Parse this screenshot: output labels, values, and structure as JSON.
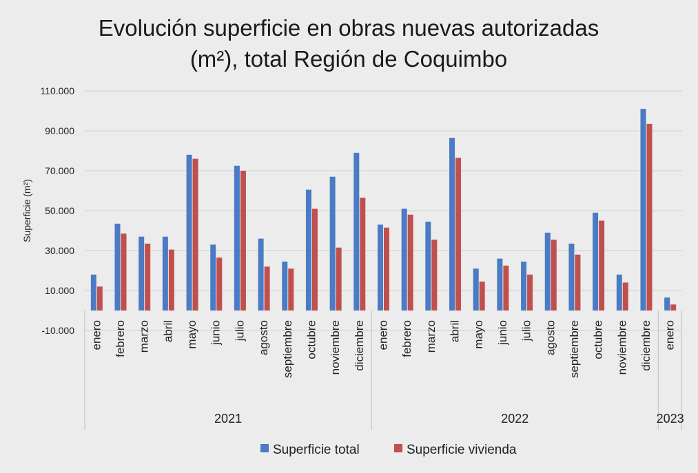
{
  "chart_data": {
    "type": "bar",
    "title_lines": [
      "Evolución superficie en obras nuevas autorizadas",
      "(m²), total Región de Coquimbo"
    ],
    "ylabel": "Superficie  (m²)",
    "xlabel": "",
    "ylim": [
      -10000,
      110000
    ],
    "yticks": [
      110000,
      90000,
      70000,
      50000,
      30000,
      10000,
      -10000
    ],
    "ytick_labels": [
      "110.000",
      "90.000",
      "70.000",
      "50.000",
      "30.000",
      "10.000",
      "-10.000"
    ],
    "grid": true,
    "categories": [
      "enero",
      "febrero",
      "marzo",
      "abril",
      "mayo",
      "junio",
      "julio",
      "agosto",
      "septiembre",
      "octubre",
      "noviembre",
      "diciembre",
      "enero",
      "febrero",
      "marzo",
      "abril",
      "mayo",
      "junio",
      "julio",
      "agosto",
      "septiembre",
      "octubre",
      "noviembre",
      "diciembre",
      "enero"
    ],
    "year_groups": [
      {
        "label": "2021",
        "start": 0,
        "end": 11
      },
      {
        "label": "2022",
        "start": 12,
        "end": 23
      },
      {
        "label": "2023",
        "start": 24,
        "end": 24
      }
    ],
    "series": [
      {
        "name": "Superficie total",
        "color": "#4a7bc4",
        "values": [
          18000,
          43500,
          37000,
          37000,
          78000,
          33000,
          72500,
          36000,
          24500,
          60500,
          67000,
          79000,
          43000,
          51000,
          44500,
          86500,
          21000,
          26000,
          24500,
          39000,
          33500,
          49000,
          18000,
          101000,
          6500
        ]
      },
      {
        "name": "Superficie vivienda",
        "color": "#c0504d",
        "values": [
          12000,
          38500,
          33500,
          30500,
          76000,
          26500,
          70000,
          22000,
          21000,
          51000,
          31500,
          56500,
          41500,
          48000,
          35500,
          76500,
          14500,
          22500,
          18000,
          35500,
          28000,
          45000,
          14000,
          93500,
          3000
        ]
      }
    ],
    "legend_position": "bottom-center"
  }
}
